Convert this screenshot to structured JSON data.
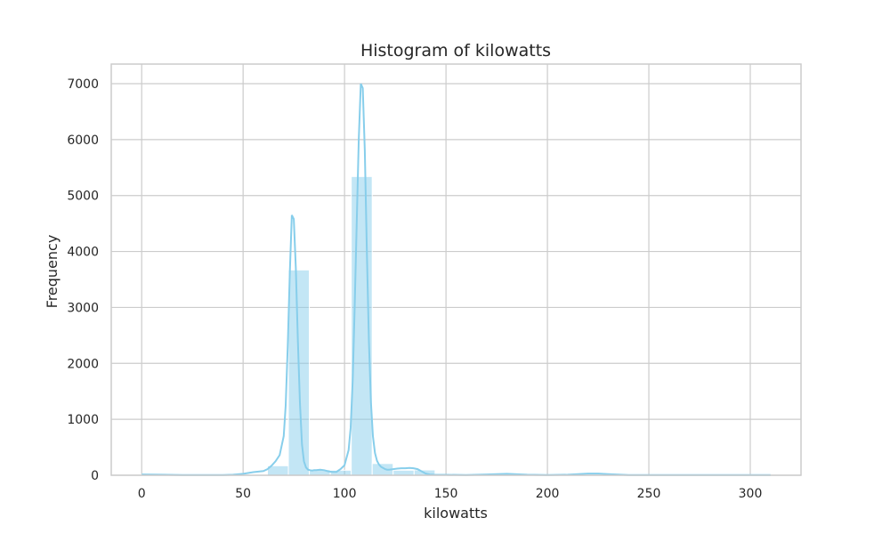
{
  "chart_data": {
    "type": "bar",
    "subtype": "histogram-with-kde",
    "title": "Histogram of kilowatts",
    "xlabel": "kilowatts",
    "ylabel": "Frequency",
    "xlim": [
      -15,
      325
    ],
    "ylim": [
      0,
      7350
    ],
    "xticks": [
      0,
      50,
      100,
      150,
      200,
      250,
      300
    ],
    "yticks": [
      0,
      1000,
      2000,
      3000,
      4000,
      5000,
      6000,
      7000
    ],
    "grid": true,
    "bar_color": "#87ceeb",
    "line_color": "#87ceeb",
    "bins": {
      "start": 0,
      "width": 10.33,
      "counts": [
        15,
        5,
        3,
        2,
        5,
        10,
        170,
        3670,
        100,
        90,
        5340,
        210,
        90,
        95,
        10,
        5,
        10,
        12,
        5,
        3,
        3,
        18,
        8,
        2,
        1,
        1,
        1,
        1,
        1,
        3
      ]
    },
    "kde": {
      "x": [
        0,
        10,
        20,
        30,
        40,
        45,
        50,
        55,
        60,
        62,
        64,
        66,
        68,
        70,
        71,
        72,
        73,
        74,
        75,
        76,
        77,
        78,
        79,
        80,
        81,
        82,
        83,
        84,
        85,
        86,
        88,
        90,
        92,
        94,
        96,
        98,
        100,
        102,
        103,
        104,
        105,
        106,
        107,
        108,
        109,
        110,
        111,
        112,
        113,
        114,
        115,
        116,
        117,
        118,
        119,
        120,
        121,
        122,
        124,
        126,
        128,
        130,
        132,
        134,
        136,
        138,
        140,
        142,
        144,
        146,
        148,
        150,
        160,
        170,
        180,
        190,
        200,
        210,
        220,
        225,
        230,
        240,
        250,
        260,
        270,
        280,
        290,
        300,
        310
      ],
      "y": [
        15,
        10,
        5,
        5,
        5,
        10,
        25,
        55,
        75,
        110,
        170,
        250,
        360,
        700,
        1250,
        2300,
        3600,
        4650,
        4580,
        3700,
        2400,
        1300,
        550,
        250,
        140,
        100,
        90,
        85,
        90,
        90,
        100,
        90,
        70,
        60,
        60,
        110,
        180,
        450,
        850,
        1700,
        3000,
        4500,
        6000,
        7000,
        6920,
        5800,
        4000,
        2400,
        1300,
        700,
        400,
        260,
        190,
        150,
        130,
        110,
        100,
        100,
        110,
        120,
        125,
        125,
        130,
        125,
        110,
        70,
        30,
        15,
        10,
        8,
        8,
        8,
        5,
        15,
        25,
        10,
        5,
        10,
        30,
        30,
        20,
        5,
        5,
        3,
        3,
        3,
        3,
        3,
        3
      ]
    }
  }
}
